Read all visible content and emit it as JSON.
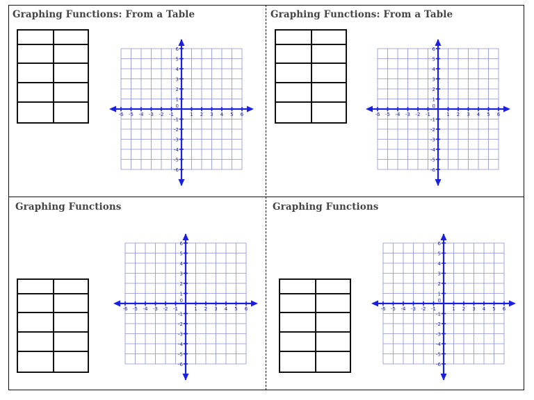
{
  "quadrants": [
    {
      "title": "Graphing Functions: From a Table",
      "table_rows": 5,
      "table_cols": 2
    },
    {
      "title": "Graphing Functions: From a Table",
      "table_rows": 5,
      "table_cols": 2
    },
    {
      "title": "Graphing Functions",
      "table_rows": 5,
      "table_cols": 2
    },
    {
      "title": "Graphing Functions",
      "table_rows": 5,
      "table_cols": 2
    }
  ],
  "grid": {
    "range": [
      -6,
      6
    ],
    "x_tick_labels": [
      "-6",
      "-5",
      "-4",
      "-3",
      "-2",
      "-1",
      "0",
      "1",
      "2",
      "3",
      "4",
      "5",
      "6"
    ],
    "y_tick_labels": [
      "6",
      "5",
      "4",
      "3",
      "2",
      "1",
      "0",
      "-1",
      "-2",
      "-3",
      "-4",
      "-5",
      "-6"
    ],
    "grid_color": "#8a8fd6",
    "axis_color": "#1a1fe0"
  }
}
